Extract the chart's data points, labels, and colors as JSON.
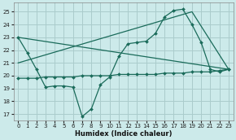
{
  "xlabel": "Humidex (Indice chaleur)",
  "bg_color": "#cceaea",
  "grid_color": "#aacccc",
  "line_color": "#1a6b5a",
  "xlim": [
    -0.5,
    23.5
  ],
  "ylim": [
    16.5,
    25.7
  ],
  "xticks": [
    0,
    1,
    2,
    3,
    4,
    5,
    6,
    7,
    8,
    9,
    10,
    11,
    12,
    13,
    14,
    15,
    16,
    17,
    18,
    19,
    20,
    21,
    22,
    23
  ],
  "yticks": [
    17,
    18,
    19,
    20,
    21,
    22,
    23,
    24,
    25
  ],
  "line_main": {
    "x": [
      0,
      1,
      2,
      3,
      4,
      5,
      6,
      7,
      8,
      9,
      10,
      11,
      12,
      13,
      14,
      15,
      16,
      17,
      18,
      19,
      20,
      21,
      22,
      23
    ],
    "y": [
      23.0,
      21.8,
      20.5,
      19.1,
      19.2,
      19.2,
      19.1,
      16.8,
      17.4,
      19.3,
      19.9,
      21.5,
      22.5,
      22.6,
      22.7,
      23.3,
      24.6,
      25.1,
      25.2,
      24.0,
      22.6,
      20.5,
      20.3,
      20.5
    ]
  },
  "line_decline": {
    "x": [
      0,
      23
    ],
    "y": [
      23.0,
      20.5
    ]
  },
  "line_rise": {
    "x": [
      0,
      19,
      23
    ],
    "y": [
      21.0,
      25.0,
      20.5
    ]
  },
  "line_flat": {
    "x": [
      0,
      1,
      2,
      3,
      4,
      5,
      6,
      7,
      8,
      9,
      10,
      11,
      12,
      13,
      14,
      15,
      16,
      17,
      18,
      19,
      20,
      21,
      22,
      23
    ],
    "y": [
      19.8,
      19.8,
      19.8,
      19.9,
      19.9,
      19.9,
      19.9,
      20.0,
      20.0,
      20.0,
      20.0,
      20.1,
      20.1,
      20.1,
      20.1,
      20.1,
      20.2,
      20.2,
      20.2,
      20.3,
      20.3,
      20.3,
      20.4,
      20.5
    ]
  }
}
